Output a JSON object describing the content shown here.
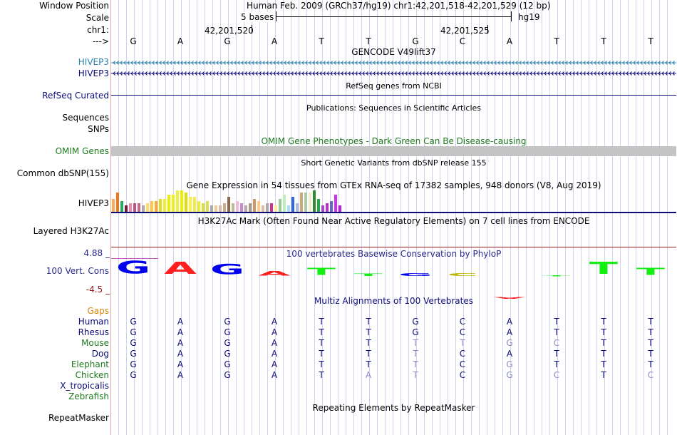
{
  "header": {
    "title": "Human Feb. 2009 (GRCh37/hg19)   chr1:42,201,518-42,201,529 (12 bp)",
    "scale_text": "5 bases",
    "assembly": "hg19",
    "coord_left": "42,201,520",
    "coord_right": "42,201,525"
  },
  "labels": {
    "window_position": "Window Position",
    "scale": "Scale",
    "chrom": "chr1:",
    "strand": "--->"
  },
  "bases": [
    "G",
    "A",
    "G",
    "A",
    "T",
    "T",
    "G",
    "C",
    "A",
    "T",
    "T",
    "T"
  ],
  "tracks": {
    "gencode": {
      "title": "GENCODE V49lift37",
      "label1": "HIVEP3",
      "label2": "HIVEP3"
    },
    "refseq": {
      "label": "RefSeq Curated",
      "title": "RefSeq genes from NCBI"
    },
    "pubs": {
      "title": "Publications: Sequences in Scientific Articles",
      "label1": "Sequences",
      "label2": "SNPs"
    },
    "omim": {
      "title": "OMIM Gene Phenotypes - Dark Green Can Be Disease-causing",
      "label": "OMIM Genes"
    },
    "dbsnp": {
      "title": "Short Genetic Variants from dbSNP release 155",
      "label": "Common dbSNP(155)"
    },
    "gtex": {
      "title": "Gene Expression in 54 tissues from GTEx RNA-seq of 17382 samples, 948 donors (V8, Aug 2019)",
      "label": "HIVEP3",
      "values": [
        0.6,
        0.9,
        0.5,
        0.3,
        0.4,
        0.4,
        0.4,
        0.3,
        0.4,
        0.5,
        0.5,
        0.6,
        0.6,
        0.8,
        0.8,
        1.0,
        1.0,
        0.9,
        0.7,
        0.7,
        0.5,
        0.4,
        0.5,
        0.3,
        0.3,
        0.3,
        0.4,
        0.7,
        0.4,
        0.5,
        0.4,
        0.3,
        0.4,
        0.6,
        0.5,
        0.3,
        0.4,
        0.4,
        0.3,
        0.6,
        0.8,
        0.3,
        0.7,
        0.4,
        0.9,
        0.9,
        0.9,
        1.0,
        0.6,
        0.3,
        0.4,
        0.5,
        0.8,
        0.3
      ],
      "colors": [
        "#ffaa55",
        "#ee7722",
        "#22aa66",
        "#7a1a3a",
        "#ee88aa",
        "#bb5588",
        "#cc6688",
        "#aaaaaa",
        "#ffdd66",
        "#ffcc44",
        "#ffaa33",
        "#dddd22",
        "#eeee33",
        "#eeee00",
        "#eeee22",
        "#eeee44",
        "#eeee00",
        "#dddd11",
        "#ffee44",
        "#eeee44",
        "#eeee33",
        "#dddd44",
        "#dddd55",
        "#aaaaaa",
        "#eecc99",
        "#ddbbaa",
        "#ccaa88",
        "#8a6a4a",
        "#bbbb99",
        "#eebbdd",
        "#cc88cc",
        "#bbaaaa",
        "#aa9988",
        "#cc9966",
        "#ffcc88",
        "#ddbbaa",
        "#aaaaaa",
        "#cc3399",
        "#ffee99",
        "#99cc99",
        "#bbeebb",
        "#aaddff",
        "#3366dd",
        "#aabbdd",
        "#ccaa77",
        "#aaccaa",
        "#eeeecc",
        "#338833",
        "#22aa44",
        "#aa44cc",
        "#bb33cc",
        "#6666cc",
        "#cc33ee",
        "#bb22dd"
      ]
    },
    "h3k27ac": {
      "title": "H3K27Ac Mark (Often Found Near Active Regulatory Elements) on 7 cell lines from ENCODE",
      "label": "Layered H3K27Ac"
    },
    "phylop": {
      "title": "100 vertebrates Basewise Conservation by PhyloP",
      "label": "100 Vert. Cons",
      "max_label": "4.88 _",
      "min_label": "-4.5 _",
      "scores": [
        4.2,
        3.9,
        3.2,
        1.5,
        2.2,
        0.8,
        0.9,
        0.9,
        -0.6,
        0.2,
        3.8,
        2.2
      ]
    },
    "multiz": {
      "title": "Multiz Alignments of 100 Vertebrates",
      "gaps_label": "Gaps",
      "species": [
        {
          "name": "Human",
          "seq": [
            "G",
            "A",
            "G",
            "A",
            "T",
            "T",
            "G",
            "C",
            "A",
            "T",
            "T",
            "T"
          ]
        },
        {
          "name": "Rhesus",
          "seq": [
            "G",
            "A",
            "G",
            "A",
            "T",
            "T",
            "G",
            "C",
            "A",
            "T",
            "T",
            "T"
          ]
        },
        {
          "name": "Mouse",
          "seq": [
            "G",
            "A",
            "G",
            "A",
            "T",
            "T",
            "T",
            "T",
            "G",
            "C",
            "T",
            "T"
          ]
        },
        {
          "name": "Dog",
          "seq": [
            "G",
            "A",
            "G",
            "A",
            "T",
            "T",
            "T",
            "C",
            "A",
            "T",
            "T",
            "T"
          ]
        },
        {
          "name": "Elephant",
          "seq": [
            "G",
            "A",
            "G",
            "A",
            "T",
            "T",
            "T",
            "C",
            "G",
            "T",
            "T",
            "T"
          ]
        },
        {
          "name": "Chicken",
          "seq": [
            "G",
            "A",
            "G",
            "A",
            "T",
            "A",
            "T",
            "C",
            "G",
            "C",
            "T",
            "C"
          ]
        },
        {
          "name": "X_tropicalis",
          "seq": []
        },
        {
          "name": "Zebrafish",
          "seq": []
        }
      ]
    },
    "rmsk": {
      "title": "Repeating Elements by RepeatMasker",
      "label": "RepeatMasker"
    }
  },
  "colors": {
    "gencode_teal": "#2a7fab",
    "navy": "#0c0c78",
    "omim_green": "#1e7a1e",
    "omim_bar": "#c4c4c4",
    "h3k27ac_line": "#8b1a1a",
    "gaps_orange": "#d4850a",
    "mismatch_grey": "#8c8cc8",
    "species_green": "#1e7a1e",
    "logo_A": "#ff1f1f",
    "logo_C": "#bfb600",
    "logo_G": "#0000ee",
    "logo_T": "#13ee13"
  }
}
